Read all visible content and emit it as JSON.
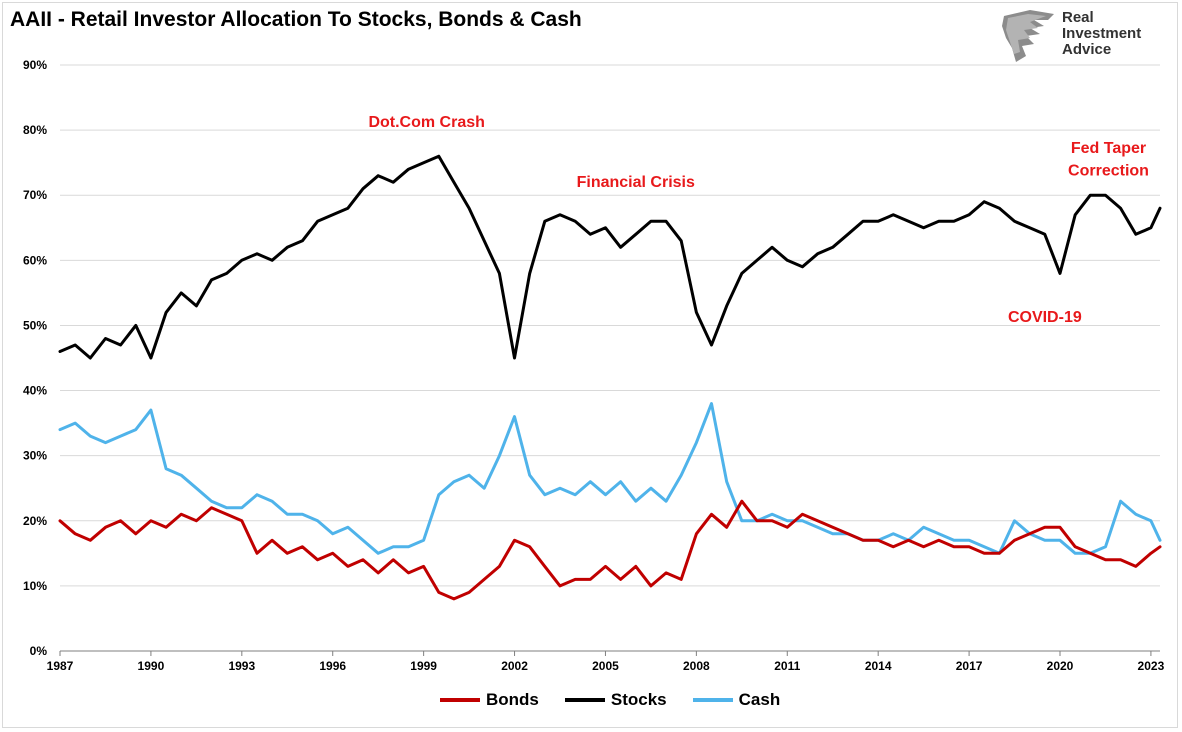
{
  "title": "AAII - Retail Investor Allocation To Stocks, Bonds & Cash",
  "brand": {
    "lines": [
      "Real",
      "Investment",
      "Advice"
    ],
    "logo_icon": "lion-head-logo-icon"
  },
  "colors": {
    "bonds": "#c00000",
    "stocks": "#000000",
    "cash": "#4fb3ea",
    "annotation": "#e8191b"
  },
  "chart_data": {
    "type": "line",
    "title": "AAII - Retail Investor Allocation To Stocks, Bonds & Cash",
    "xlabel": "",
    "ylabel": "",
    "xlim": [
      1987,
      2023.3
    ],
    "ylim": [
      0,
      90
    ],
    "y_tick_labels": [
      "0%",
      "10%",
      "20%",
      "30%",
      "40%",
      "50%",
      "60%",
      "70%",
      "80%",
      "90%"
    ],
    "x_tick_labels": [
      "1987",
      "1990",
      "1993",
      "1996",
      "1999",
      "2002",
      "2005",
      "2008",
      "2011",
      "2014",
      "2017",
      "2020",
      "2023"
    ],
    "grid": true,
    "legend_position": "bottom",
    "annotations": [
      {
        "text": "Dot.Com Crash",
        "x": 1999.1,
        "y": 80.5
      },
      {
        "text": "Financial Crisis",
        "x": 2006.0,
        "y": 71.3
      },
      {
        "text": "Fed Taper",
        "x": 2021.6,
        "y": 76.5
      },
      {
        "text": "Correction",
        "x": 2021.6,
        "y": 73.0
      },
      {
        "text": "COVID-19",
        "x": 2019.5,
        "y": 50.5
      }
    ],
    "series": [
      {
        "name": "Bonds",
        "x": [
          1987.0,
          1987.5,
          1988.0,
          1988.5,
          1989.0,
          1989.5,
          1990.0,
          1990.5,
          1991.0,
          1991.5,
          1992.0,
          1992.5,
          1993.0,
          1993.5,
          1994.0,
          1994.5,
          1995.0,
          1995.5,
          1996.0,
          1996.5,
          1997.0,
          1997.5,
          1998.0,
          1998.5,
          1999.0,
          1999.5,
          2000.0,
          2000.5,
          2001.0,
          2001.5,
          2002.0,
          2002.5,
          2003.0,
          2003.5,
          2004.0,
          2004.5,
          2005.0,
          2005.5,
          2006.0,
          2006.5,
          2007.0,
          2007.5,
          2008.0,
          2008.5,
          2009.0,
          2009.5,
          2010.0,
          2010.5,
          2011.0,
          2011.5,
          2012.0,
          2012.5,
          2013.0,
          2013.5,
          2014.0,
          2014.5,
          2015.0,
          2015.5,
          2016.0,
          2016.5,
          2017.0,
          2017.5,
          2018.0,
          2018.5,
          2019.0,
          2019.5,
          2020.0,
          2020.5,
          2021.0,
          2021.5,
          2022.0,
          2022.5,
          2023.0,
          2023.3
        ],
        "values": [
          20,
          18,
          17,
          19,
          20,
          18,
          20,
          19,
          21,
          20,
          22,
          21,
          20,
          15,
          17,
          15,
          16,
          14,
          15,
          13,
          14,
          12,
          14,
          12,
          13,
          9,
          8,
          9,
          11,
          13,
          17,
          16,
          13,
          10,
          11,
          11,
          13,
          11,
          13,
          10,
          12,
          11,
          18,
          21,
          19,
          23,
          20,
          20,
          19,
          21,
          20,
          19,
          18,
          17,
          17,
          16,
          17,
          16,
          17,
          16,
          16,
          15,
          15,
          17,
          18,
          19,
          19,
          16,
          15,
          14,
          14,
          13,
          15,
          16
        ]
      },
      {
        "name": "Stocks",
        "x": [
          1987.0,
          1987.5,
          1988.0,
          1988.5,
          1989.0,
          1989.5,
          1990.0,
          1990.5,
          1991.0,
          1991.5,
          1992.0,
          1992.5,
          1993.0,
          1993.5,
          1994.0,
          1994.5,
          1995.0,
          1995.5,
          1996.0,
          1996.5,
          1997.0,
          1997.5,
          1998.0,
          1998.5,
          1999.0,
          1999.5,
          2000.0,
          2000.5,
          2001.0,
          2001.5,
          2002.0,
          2002.5,
          2003.0,
          2003.5,
          2004.0,
          2004.5,
          2005.0,
          2005.5,
          2006.0,
          2006.5,
          2007.0,
          2007.5,
          2008.0,
          2008.5,
          2009.0,
          2009.5,
          2010.0,
          2010.5,
          2011.0,
          2011.5,
          2012.0,
          2012.5,
          2013.0,
          2013.5,
          2014.0,
          2014.5,
          2015.0,
          2015.5,
          2016.0,
          2016.5,
          2017.0,
          2017.5,
          2018.0,
          2018.5,
          2019.0,
          2019.5,
          2020.0,
          2020.5,
          2021.0,
          2021.5,
          2022.0,
          2022.5,
          2023.0,
          2023.3
        ],
        "values": [
          46,
          47,
          45,
          48,
          47,
          50,
          45,
          52,
          55,
          53,
          57,
          58,
          60,
          61,
          60,
          62,
          63,
          66,
          67,
          68,
          71,
          73,
          72,
          74,
          75,
          76,
          72,
          68,
          63,
          58,
          45,
          58,
          66,
          67,
          66,
          64,
          65,
          62,
          64,
          66,
          66,
          63,
          52,
          47,
          53,
          58,
          60,
          62,
          60,
          59,
          61,
          62,
          64,
          66,
          66,
          67,
          66,
          65,
          66,
          66,
          67,
          69,
          68,
          66,
          65,
          64,
          58,
          67,
          70,
          70,
          68,
          64,
          65,
          68
        ]
      },
      {
        "name": "Cash",
        "x": [
          1987.0,
          1987.5,
          1988.0,
          1988.5,
          1989.0,
          1989.5,
          1990.0,
          1990.5,
          1991.0,
          1991.5,
          1992.0,
          1992.5,
          1993.0,
          1993.5,
          1994.0,
          1994.5,
          1995.0,
          1995.5,
          1996.0,
          1996.5,
          1997.0,
          1997.5,
          1998.0,
          1998.5,
          1999.0,
          1999.5,
          2000.0,
          2000.5,
          2001.0,
          2001.5,
          2002.0,
          2002.5,
          2003.0,
          2003.5,
          2004.0,
          2004.5,
          2005.0,
          2005.5,
          2006.0,
          2006.5,
          2007.0,
          2007.5,
          2008.0,
          2008.5,
          2009.0,
          2009.5,
          2010.0,
          2010.5,
          2011.0,
          2011.5,
          2012.0,
          2012.5,
          2013.0,
          2013.5,
          2014.0,
          2014.5,
          2015.0,
          2015.5,
          2016.0,
          2016.5,
          2017.0,
          2017.5,
          2018.0,
          2018.5,
          2019.0,
          2019.5,
          2020.0,
          2020.5,
          2021.0,
          2021.5,
          2022.0,
          2022.5,
          2023.0,
          2023.3
        ],
        "values": [
          34,
          35,
          33,
          32,
          33,
          34,
          37,
          28,
          27,
          25,
          23,
          22,
          22,
          24,
          23,
          21,
          21,
          20,
          18,
          19,
          17,
          15,
          16,
          16,
          17,
          24,
          26,
          27,
          25,
          30,
          36,
          27,
          24,
          25,
          24,
          26,
          24,
          26,
          23,
          25,
          23,
          27,
          32,
          38,
          26,
          20,
          20,
          21,
          20,
          20,
          19,
          18,
          18,
          17,
          17,
          18,
          17,
          19,
          18,
          17,
          17,
          16,
          15,
          20,
          18,
          17,
          17,
          15,
          15,
          16,
          23,
          21,
          20,
          17
        ]
      }
    ]
  }
}
